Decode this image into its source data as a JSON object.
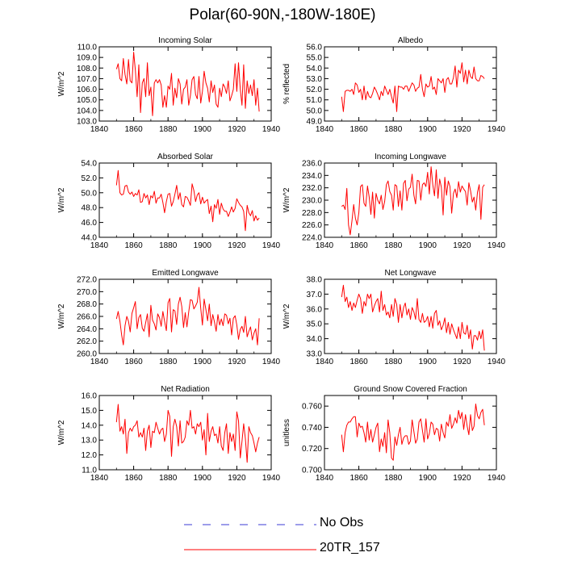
{
  "figure": {
    "title": "Polar(60-90N,-180W-180E)",
    "legend": [
      {
        "label": "No Obs",
        "color": "#3b3bd6",
        "dash": true
      },
      {
        "label": "20TR_157",
        "color": "#ff0000",
        "dash": false
      }
    ]
  },
  "chart_data": [
    {
      "type": "line",
      "title": "Incoming Solar",
      "ylabel": "W/m^2",
      "xlim": [
        1840,
        1940
      ],
      "ylim": [
        103,
        110
      ],
      "xticks": [
        "1840",
        "1860",
        "1880",
        "1900",
        "1920",
        "1940"
      ],
      "yticks": [
        "103.0",
        "104.0",
        "105.0",
        "106.0",
        "107.0",
        "108.0",
        "109.0",
        "110.0"
      ],
      "series": [
        {
          "name": "20TR_157",
          "color": "#ff0000",
          "start": 1850,
          "values": [
            107.9,
            108.4,
            107.0,
            106.8,
            108.9,
            107.4,
            106.5,
            108.8,
            106.8,
            106.6,
            109.5,
            107.8,
            105.3,
            108.3,
            103.8,
            106.6,
            107.0,
            105.3,
            108.5,
            105.4,
            106.2,
            103.5,
            106.6,
            106.9,
            106.6,
            106.9,
            106.4,
            104.3,
            105.4,
            104.3,
            106.3,
            106.0,
            107.5,
            104.5,
            106.1,
            105.2,
            107.0,
            106.5,
            104.6,
            106.0,
            106.2,
            106.9,
            104.5,
            105.4,
            106.9,
            107.2,
            105.5,
            105.1,
            107.2,
            104.7,
            105.8,
            107.7,
            106.6,
            106.1,
            104.8,
            106.8,
            105.7,
            106.4,
            104.6,
            104.3,
            106.1,
            105.3,
            106.5,
            106.2,
            105.6,
            106.8,
            104.9,
            105.4,
            106.0,
            108.4,
            105.8,
            108.5,
            106.0,
            104.5,
            108.3,
            104.2,
            106.8,
            105.6,
            106.4,
            105.4,
            106.9,
            104.5,
            106.1,
            103.9
          ]
        }
      ]
    },
    {
      "type": "line",
      "title": "Albedo",
      "ylabel": "% reflected",
      "xlim": [
        1840,
        1940
      ],
      "ylim": [
        49,
        56
      ],
      "xticks": [
        "1840",
        "1860",
        "1880",
        "1900",
        "1920",
        "1940"
      ],
      "yticks": [
        "49.0",
        "50.0",
        "51.0",
        "52.0",
        "53.0",
        "54.0",
        "55.0",
        "56.0"
      ],
      "series": [
        {
          "name": "20TR_157",
          "color": "#ff0000",
          "start": 1850,
          "values": [
            51.3,
            49.9,
            51.8,
            51.9,
            51.9,
            51.8,
            52.0,
            51.5,
            52.6,
            52.4,
            51.7,
            52.0,
            51.0,
            52.3,
            51.0,
            51.8,
            51.3,
            51.2,
            51.6,
            52.2,
            51.9,
            51.5,
            51.0,
            51.8,
            51.4,
            52.3,
            51.9,
            51.5,
            52.0,
            51.3,
            50.7,
            52.3,
            49.9,
            52.3,
            52.2,
            52.2,
            52.0,
            52.3,
            52.3,
            51.8,
            52.2,
            52.6,
            52.4,
            51.8,
            52.1,
            52.2,
            53.4,
            52.0,
            51.3,
            52.5,
            52.2,
            52.3,
            53.2,
            52.0,
            52.2,
            51.5,
            53.0,
            52.8,
            52.6,
            53.0,
            51.7,
            52.9,
            53.1,
            52.5,
            52.5,
            53.1,
            54.2,
            52.2,
            53.8,
            53.5,
            54.5,
            52.7,
            53.8,
            52.5,
            53.8,
            53.2,
            53.0,
            54.1,
            53.0,
            52.8,
            52.8,
            53.3,
            53.2,
            53.0
          ]
        }
      ]
    },
    {
      "type": "line",
      "title": "Absorbed Solar",
      "ylabel": "W/m^2",
      "xlim": [
        1840,
        1940
      ],
      "ylim": [
        44,
        54
      ],
      "xticks": [
        "1840",
        "1860",
        "1880",
        "1900",
        "1920",
        "1940"
      ],
      "yticks": [
        "44.0",
        "46.0",
        "48.0",
        "50.0",
        "52.0",
        "54.0"
      ],
      "series": [
        {
          "name": "20TR_157",
          "color": "#ff0000",
          "start": 1850,
          "values": [
            51.0,
            53.0,
            50.0,
            49.7,
            49.8,
            50.9,
            51.0,
            50.1,
            49.8,
            50.1,
            49.5,
            49.9,
            49.7,
            50.4,
            48.7,
            48.8,
            49.9,
            49.3,
            49.7,
            48.4,
            49.6,
            49.3,
            50.2,
            48.6,
            49.3,
            49.3,
            49.8,
            48.7,
            47.3,
            48.8,
            49.8,
            49.9,
            48.2,
            48.8,
            49.8,
            51.0,
            49.1,
            50.0,
            48.4,
            48.1,
            49.5,
            49.4,
            48.9,
            48.3,
            51.2,
            50.3,
            48.8,
            49.7,
            50.0,
            48.5,
            49.4,
            48.6,
            48.9,
            49.1,
            47.2,
            48.2,
            46.1,
            48.4,
            47.9,
            49.1,
            47.1,
            48.6,
            47.8,
            47.5,
            47.5,
            46.8,
            47.4,
            48.1,
            47.4,
            47.9,
            49.2,
            48.7,
            48.3,
            48.1,
            47.5,
            44.9,
            48.3,
            47.3,
            46.9,
            47.6,
            46.2,
            46.9,
            46.3,
            46.6
          ]
        }
      ]
    },
    {
      "type": "line",
      "title": "Incoming Longwave",
      "ylabel": "W/m^2",
      "xlim": [
        1840,
        1940
      ],
      "ylim": [
        224,
        236
      ],
      "xticks": [
        "1840",
        "1860",
        "1880",
        "1900",
        "1920",
        "1940"
      ],
      "yticks": [
        "224.0",
        "226.0",
        "228.0",
        "230.0",
        "232.0",
        "234.0",
        "236.0"
      ],
      "series": [
        {
          "name": "20TR_157",
          "color": "#ff0000",
          "start": 1850,
          "values": [
            229.0,
            229.2,
            228.5,
            231.9,
            226.0,
            224.4,
            226.7,
            229.3,
            227.1,
            226.0,
            228.0,
            232.2,
            232.5,
            229.5,
            229.0,
            232.3,
            230.5,
            227.7,
            231.3,
            227.1,
            231.1,
            230.0,
            229.4,
            230.8,
            228.5,
            229.8,
            232.5,
            233.1,
            231.4,
            230.8,
            228.4,
            232.5,
            232.3,
            229.0,
            231.5,
            228.4,
            232.7,
            233.2,
            229.9,
            231.8,
            232.1,
            234.2,
            230.8,
            229.4,
            233.2,
            233.1,
            230.0,
            232.5,
            232.8,
            232.2,
            234.5,
            231.0,
            235.4,
            232.5,
            230.7,
            234.9,
            230.3,
            233.4,
            232.1,
            227.6,
            233.7,
            230.8,
            233.1,
            232.2,
            227.9,
            231.1,
            231.8,
            230.4,
            233.0,
            231.3,
            232.3,
            231.8,
            231.4,
            229.2,
            232.8,
            231.5,
            229.7,
            230.5,
            228.4,
            231.3,
            232.5,
            226.9,
            232.1,
            232.5
          ]
        }
      ]
    },
    {
      "type": "line",
      "title": "Emitted Longwave",
      "ylabel": "W/m^2",
      "xlim": [
        1840,
        1940
      ],
      "ylim": [
        260,
        272
      ],
      "xticks": [
        "1840",
        "1860",
        "1880",
        "1900",
        "1920",
        "1940"
      ],
      "yticks": [
        "260.0",
        "262.0",
        "264.0",
        "266.0",
        "268.0",
        "270.0",
        "272.0"
      ],
      "series": [
        {
          "name": "20TR_157",
          "color": "#ff0000",
          "start": 1850,
          "values": [
            265.6,
            266.8,
            265.2,
            263.0,
            261.4,
            264.5,
            266.0,
            265.2,
            263.5,
            266.5,
            267.4,
            268.4,
            264.0,
            265.8,
            266.3,
            264.1,
            263.6,
            265.0,
            266.4,
            262.7,
            267.8,
            265.4,
            264.8,
            263.8,
            266.4,
            265.8,
            264.4,
            266.8,
            265.2,
            263.7,
            268.2,
            268.9,
            263.5,
            267.1,
            266.9,
            264.7,
            268.0,
            269.1,
            267.6,
            264.2,
            266.6,
            264.3,
            266.7,
            268.7,
            268.6,
            267.2,
            267.7,
            268.3,
            270.7,
            267.3,
            264.6,
            268.8,
            267.1,
            265.3,
            268.0,
            264.5,
            266.3,
            265.1,
            263.6,
            266.3,
            264.6,
            265.6,
            264.5,
            266.4,
            266.2,
            264.8,
            265.7,
            263.0,
            265.7,
            266.1,
            264.6,
            262.3,
            263.9,
            264.4,
            263.4,
            266.0,
            262.7,
            263.6,
            264.3,
            262.2,
            263.3,
            264.0,
            261.4,
            265.7
          ]
        }
      ]
    },
    {
      "type": "line",
      "title": "Net Longwave",
      "ylabel": "W/m^2",
      "xlim": [
        1840,
        1940
      ],
      "ylim": [
        33,
        38
      ],
      "xticks": [
        "1840",
        "1860",
        "1880",
        "1900",
        "1920",
        "1940"
      ],
      "yticks": [
        "33.0",
        "34.0",
        "35.0",
        "36.0",
        "37.0",
        "38.0"
      ],
      "series": [
        {
          "name": "20TR_157",
          "color": "#ff0000",
          "start": 1850,
          "values": [
            36.8,
            37.6,
            36.5,
            36.8,
            36.1,
            36.5,
            35.9,
            36.4,
            36.1,
            36.6,
            37.0,
            36.7,
            35.7,
            36.5,
            36.2,
            37.0,
            36.7,
            37.0,
            35.8,
            36.2,
            36.5,
            36.7,
            35.8,
            37.2,
            35.9,
            36.3,
            35.6,
            35.8,
            35.4,
            36.3,
            35.5,
            36.7,
            36.3,
            35.1,
            36.3,
            35.4,
            36.1,
            36.4,
            35.6,
            36.0,
            35.3,
            36.1,
            35.8,
            35.3,
            36.7,
            35.3,
            35.1,
            35.7,
            35.1,
            35.2,
            35.5,
            34.8,
            35.5,
            34.7,
            35.7,
            35.9,
            34.9,
            35.2,
            34.6,
            34.9,
            35.4,
            34.4,
            35.1,
            34.3,
            35.0,
            34.6,
            34.3,
            34.0,
            34.8,
            34.0,
            35.1,
            34.4,
            34.3,
            34.9,
            34.0,
            34.6,
            33.3,
            34.2,
            34.2,
            33.9,
            34.5,
            34.0,
            34.6,
            33.2
          ]
        }
      ]
    },
    {
      "type": "line",
      "title": "Net Radiation",
      "ylabel": "W/m^2",
      "xlim": [
        1840,
        1940
      ],
      "ylim": [
        11,
        16
      ],
      "xticks": [
        "1840",
        "1860",
        "1880",
        "1900",
        "1920",
        "1940"
      ],
      "yticks": [
        "11.0",
        "12.0",
        "13.0",
        "14.0",
        "15.0",
        "16.0"
      ],
      "series": [
        {
          "name": "20TR_157",
          "color": "#ff0000",
          "start": 1850,
          "values": [
            14.2,
            15.4,
            13.6,
            13.9,
            13.4,
            14.4,
            12.1,
            13.5,
            13.8,
            13.6,
            13.9,
            14.0,
            14.3,
            13.2,
            13.5,
            13.2,
            13.8,
            12.3,
            13.6,
            14.0,
            12.5,
            13.6,
            13.5,
            14.2,
            13.8,
            13.4,
            13.7,
            13.8,
            12.9,
            13.4,
            15.0,
            14.6,
            11.9,
            13.9,
            14.4,
            13.9,
            12.6,
            14.3,
            12.8,
            12.9,
            13.2,
            14.3,
            14.0,
            15.0,
            13.8,
            13.9,
            13.4,
            14.1,
            13.9,
            14.2,
            13.0,
            13.7,
            12.0,
            14.8,
            12.9,
            13.6,
            13.9,
            13.3,
            13.4,
            12.8,
            13.9,
            12.6,
            12.3,
            13.5,
            14.1,
            12.1,
            13.5,
            12.9,
            13.4,
            12.3,
            14.9,
            14.3,
            11.8,
            12.9,
            14.1,
            13.1,
            11.5,
            13.9,
            13.5,
            13.3,
            12.8,
            12.2,
            12.8,
            13.2
          ]
        }
      ]
    },
    {
      "type": "line",
      "title": "Ground Snow Covered Fraction",
      "ylabel": "unitless",
      "xlim": [
        1840,
        1940
      ],
      "ylim": [
        0.7,
        0.77
      ],
      "xticks": [
        "1840",
        "1860",
        "1880",
        "1900",
        "1920",
        "1940"
      ],
      "yticks": [
        "0.700",
        "0.720",
        "0.740",
        "0.760"
      ],
      "series": [
        {
          "name": "20TR_157",
          "color": "#ff0000",
          "start": 1850,
          "values": [
            0.733,
            0.717,
            0.735,
            0.742,
            0.745,
            0.745,
            0.748,
            0.75,
            0.75,
            0.731,
            0.744,
            0.74,
            0.741,
            0.735,
            0.726,
            0.745,
            0.728,
            0.738,
            0.726,
            0.733,
            0.74,
            0.744,
            0.717,
            0.729,
            0.722,
            0.735,
            0.716,
            0.747,
            0.735,
            0.711,
            0.709,
            0.731,
            0.723,
            0.733,
            0.74,
            0.724,
            0.73,
            0.732,
            0.732,
            0.724,
            0.727,
            0.747,
            0.736,
            0.725,
            0.729,
            0.745,
            0.748,
            0.737,
            0.726,
            0.748,
            0.729,
            0.734,
            0.745,
            0.743,
            0.733,
            0.739,
            0.738,
            0.727,
            0.743,
            0.735,
            0.73,
            0.745,
            0.741,
            0.752,
            0.739,
            0.743,
            0.749,
            0.744,
            0.756,
            0.748,
            0.754,
            0.738,
            0.752,
            0.741,
            0.733,
            0.752,
            0.737,
            0.741,
            0.762,
            0.751,
            0.748,
            0.754,
            0.757,
            0.742
          ]
        }
      ]
    }
  ]
}
